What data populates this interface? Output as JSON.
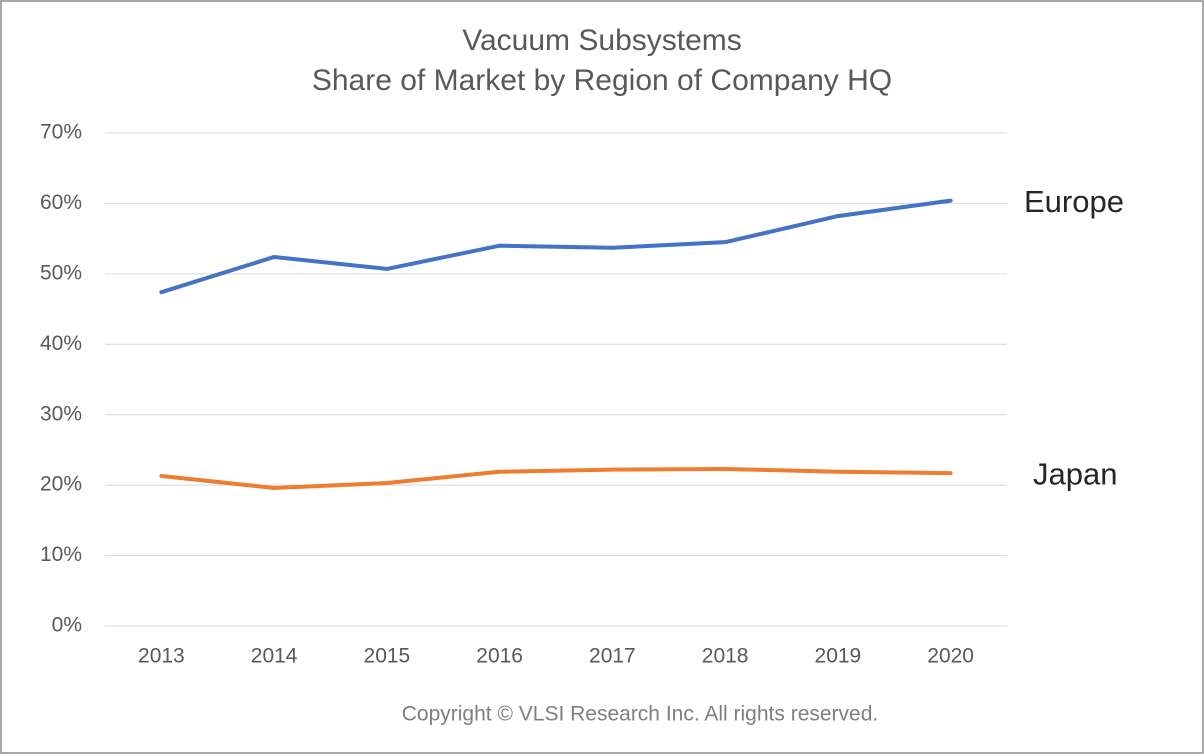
{
  "chart_data": {
    "type": "line",
    "title": "Vacuum Subsystems",
    "subtitle": "Share of Market by Region of Company HQ",
    "annotation": "Copyright © VLSI Research Inc.  All rights reserved.",
    "categories": [
      "2013",
      "2014",
      "2015",
      "2016",
      "2017",
      "2018",
      "2019",
      "2020"
    ],
    "series": [
      {
        "name": "Europe",
        "color": "#4472c4",
        "values": [
          47.4,
          52.4,
          50.7,
          54.0,
          53.7,
          54.5,
          58.2,
          60.4
        ]
      },
      {
        "name": "Japan",
        "color": "#ed7d31",
        "values": [
          21.3,
          19.6,
          20.3,
          21.9,
          22.2,
          22.3,
          21.9,
          21.7
        ]
      }
    ],
    "ylim": [
      0,
      70
    ],
    "yticks": [
      {
        "value": 0,
        "label": "0%"
      },
      {
        "value": 10,
        "label": "10%"
      },
      {
        "value": 20,
        "label": "20%"
      },
      {
        "value": 30,
        "label": "30%"
      },
      {
        "value": 40,
        "label": "40%"
      },
      {
        "value": 50,
        "label": "50%"
      },
      {
        "value": 60,
        "label": "60%"
      },
      {
        "value": 70,
        "label": "70%"
      }
    ],
    "grid": true
  }
}
